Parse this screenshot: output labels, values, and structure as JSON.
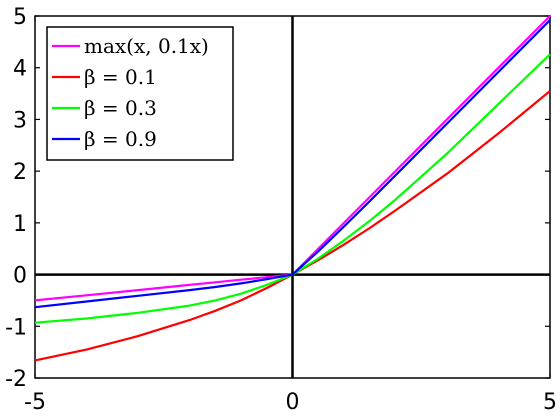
{
  "chart_data": {
    "type": "line",
    "xlim": [
      -5,
      5
    ],
    "ylim": [
      -2,
      5
    ],
    "x_ticks": [
      "-5",
      "0",
      "5"
    ],
    "y_ticks": [
      "-2",
      "-1",
      "0",
      "1",
      "2",
      "3",
      "4",
      "5"
    ],
    "x_tick_values": [
      -5,
      0,
      5
    ],
    "y_tick_values": [
      -2,
      -1,
      0,
      1,
      2,
      3,
      4,
      5
    ],
    "grid": false,
    "legend_position": "top-left",
    "x": [
      -5,
      -4,
      -3,
      -2,
      -1.5,
      -1,
      -0.5,
      0,
      0.5,
      1,
      1.5,
      2,
      3,
      4,
      5
    ],
    "series": [
      {
        "name": "max(x, 0.1x)",
        "color": "#ff00ff",
        "values": [
          -0.5,
          -0.4,
          -0.3,
          -0.2,
          -0.15,
          -0.1,
          -0.05,
          0,
          0.5,
          1,
          1.5,
          2,
          3,
          4,
          5
        ]
      },
      {
        "name": "β = 0.1",
        "color": "#ff0000",
        "values": [
          -1.66,
          -1.45,
          -1.19,
          -0.88,
          -0.7,
          -0.5,
          -0.26,
          0,
          0.28,
          0.58,
          0.9,
          1.24,
          1.95,
          2.73,
          3.55
        ]
      },
      {
        "name": "β = 0.3",
        "color": "#00ff00",
        "values": [
          -0.93,
          -0.85,
          -0.74,
          -0.6,
          -0.5,
          -0.37,
          -0.2,
          0,
          0.31,
          0.66,
          1.04,
          1.45,
          2.34,
          3.3,
          4.26
        ]
      },
      {
        "name": "β = 0.9",
        "color": "#0000ff",
        "values": [
          -0.63,
          -0.52,
          -0.41,
          -0.3,
          -0.24,
          -0.17,
          -0.09,
          0,
          0.45,
          0.93,
          1.42,
          1.92,
          2.92,
          3.92,
          4.92
        ]
      }
    ]
  }
}
